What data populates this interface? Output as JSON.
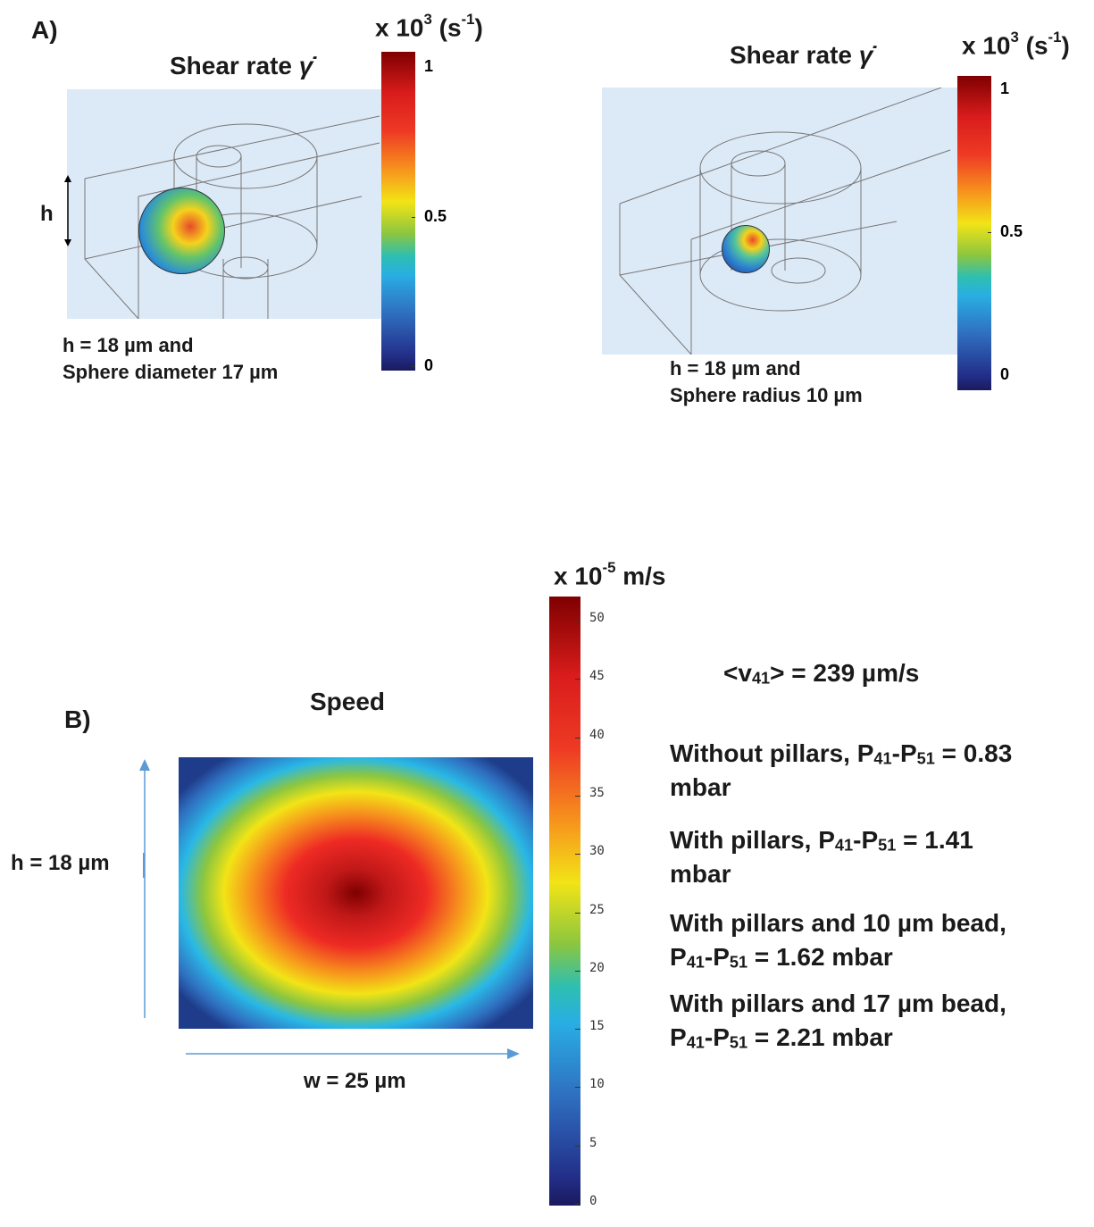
{
  "panel_a": {
    "label": "A)",
    "left": {
      "title": "Shear rate",
      "symbol": "γ̇",
      "h_label": "h",
      "caption": [
        "h = 18 µm and",
        "Sphere diameter 17 µm"
      ],
      "colorbar": {
        "base": "x 10",
        "exponent": "3",
        "unit": "(s",
        "unit_exponent": "-1",
        "unit_close": ")",
        "ticks": [
          1,
          0.5,
          0
        ]
      }
    },
    "right": {
      "title": "Shear rate",
      "symbol": "γ̇",
      "caption": [
        "h = 18 µm and",
        "Sphere radius 10 µm"
      ],
      "colorbar": {
        "base": "x 10",
        "exponent": "3",
        "unit": "(s",
        "unit_exponent": "-1",
        "unit_close": ")",
        "ticks": [
          1,
          0.5,
          0
        ]
      }
    }
  },
  "panel_b": {
    "label": "B)",
    "title": "Speed",
    "h_label": "h = 18 µm",
    "w_label": "w = 25 µm",
    "colorbar": {
      "base": "x 10",
      "exponent": "-5",
      "unit": "m/s",
      "ticks": [
        50,
        45,
        40,
        35,
        30,
        25,
        20,
        15,
        10,
        5,
        0
      ]
    },
    "notes": [
      [
        "<v",
        "41",
        "> = 239 µm/s"
      ],
      [
        "Without pillars, P",
        "41",
        "-P",
        "51",
        " = 0.83"
      ],
      [
        "mbar"
      ],
      [
        "With pillars, P",
        "41",
        "-P",
        "51",
        " = 1.41"
      ],
      [
        "mbar"
      ],
      [
        "With pillars and 10 µm bead,"
      ],
      [
        "P",
        "41",
        "-P",
        "51",
        " = 1.62 mbar"
      ],
      [
        "With pillars and 17 µm bead,"
      ],
      [
        "P",
        "41",
        "-P",
        "51",
        " = 2.21 mbar"
      ]
    ]
  }
}
